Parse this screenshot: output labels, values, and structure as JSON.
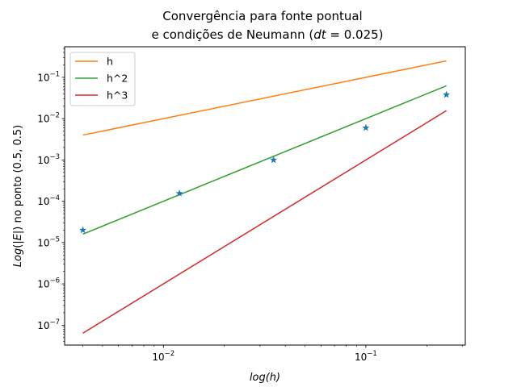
{
  "chart_data": {
    "type": "line",
    "title_line1": "Convergência para fonte pontual",
    "title_line2": "e condições de Neumann (dt = 0.025)",
    "xlabel": "log(h)",
    "ylabel": "Log(|E|) no ponto (0.5, 0.5)",
    "x_scale": "log",
    "y_scale": "log",
    "xlim": [
      0.00325,
      0.31
    ],
    "ylim": [
      3.3e-08,
      0.55
    ],
    "grid": false,
    "legend_position": "top-left",
    "x_ticks": [
      {
        "value": 0.01,
        "base": "10",
        "exp": "−2"
      },
      {
        "value": 0.1,
        "base": "10",
        "exp": "−1"
      }
    ],
    "y_ticks": [
      {
        "value": 1e-07,
        "base": "10",
        "exp": "−7"
      },
      {
        "value": 1e-06,
        "base": "10",
        "exp": "−6"
      },
      {
        "value": 1e-05,
        "base": "10",
        "exp": "−5"
      },
      {
        "value": 0.0001,
        "base": "10",
        "exp": "−4"
      },
      {
        "value": 0.001,
        "base": "10",
        "exp": "−3"
      },
      {
        "value": 0.01,
        "base": "10",
        "exp": "−2"
      },
      {
        "value": 0.1,
        "base": "10",
        "exp": "−1"
      }
    ],
    "series": [
      {
        "name": "h",
        "color": "#ff7f0e",
        "style": "line",
        "x": [
          0.004,
          0.25
        ],
        "y": [
          0.004,
          0.25
        ]
      },
      {
        "name": "h^2",
        "color": "#2ca02c",
        "style": "line",
        "x": [
          0.004,
          0.25
        ],
        "y": [
          1.6e-05,
          0.0625
        ]
      },
      {
        "name": "h^3",
        "color": "#d62728",
        "style": "line",
        "x": [
          0.004,
          0.25
        ],
        "y": [
          6.4e-08,
          0.015625
        ]
      },
      {
        "name": "",
        "color": "#1f77b4",
        "style": "marker-star",
        "x": [
          0.004,
          0.012,
          0.035,
          0.1,
          0.25
        ],
        "y": [
          2e-05,
          0.000155,
          0.001,
          0.006,
          0.038
        ]
      }
    ]
  }
}
